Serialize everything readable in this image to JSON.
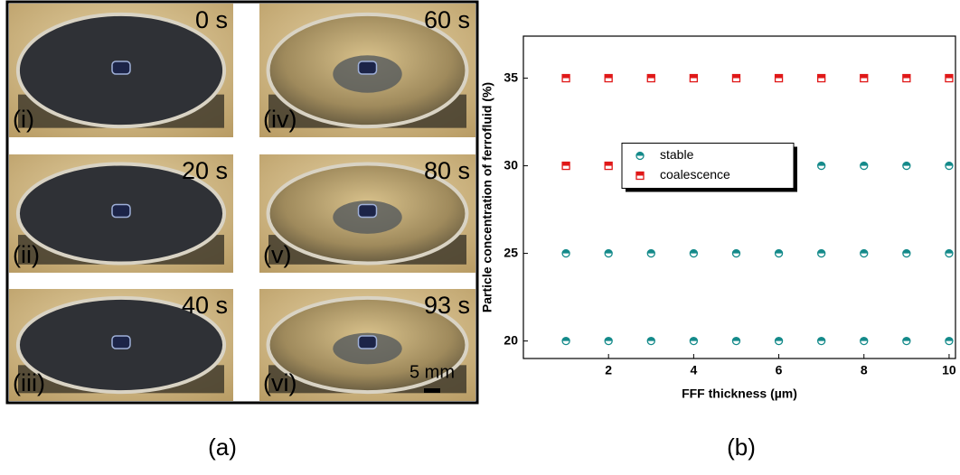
{
  "panel_a": {
    "caption": "(a)",
    "scale_bar": "5 mm",
    "frames": [
      {
        "time": "0 s",
        "label": "(i)"
      },
      {
        "time": "20 s",
        "label": "(ii)"
      },
      {
        "time": "40 s",
        "label": "(iii)"
      },
      {
        "time": "60 s",
        "label": "(iv)"
      },
      {
        "time": "80 s",
        "label": "(v)"
      },
      {
        "time": "93 s",
        "label": "(vi)"
      }
    ]
  },
  "chart_data": {
    "type": "scatter",
    "caption": "(b)",
    "xlabel": "FFF thickness (µm)",
    "ylabel": "Particle concentration of ferrofluid (%)",
    "xlim": [
      0,
      10.15
    ],
    "ylim": [
      19,
      37.4
    ],
    "xticks": [
      2,
      4,
      6,
      8,
      10
    ],
    "yticks": [
      20,
      25,
      30,
      35
    ],
    "legend": "center",
    "series": [
      {
        "name": "stable",
        "color": "#148a8a",
        "x": [
          1,
          2,
          3,
          4,
          5,
          6,
          7,
          8,
          9,
          10,
          1,
          2,
          3,
          4,
          5,
          6,
          7,
          8,
          9,
          10,
          4,
          5,
          6,
          7,
          8,
          9,
          10
        ],
        "y": [
          20,
          20,
          20,
          20,
          20,
          20,
          20,
          20,
          20,
          20,
          25,
          25,
          25,
          25,
          25,
          25,
          25,
          25,
          25,
          25,
          30,
          30,
          30,
          30,
          30,
          30,
          30
        ]
      },
      {
        "name": "coalescence",
        "color": "#e01818",
        "x": [
          1,
          2,
          3,
          4,
          5,
          6,
          7,
          8,
          9,
          10,
          1,
          2,
          3
        ],
        "y": [
          35,
          35,
          35,
          35,
          35,
          35,
          35,
          35,
          35,
          35,
          30,
          30,
          30
        ]
      }
    ]
  }
}
